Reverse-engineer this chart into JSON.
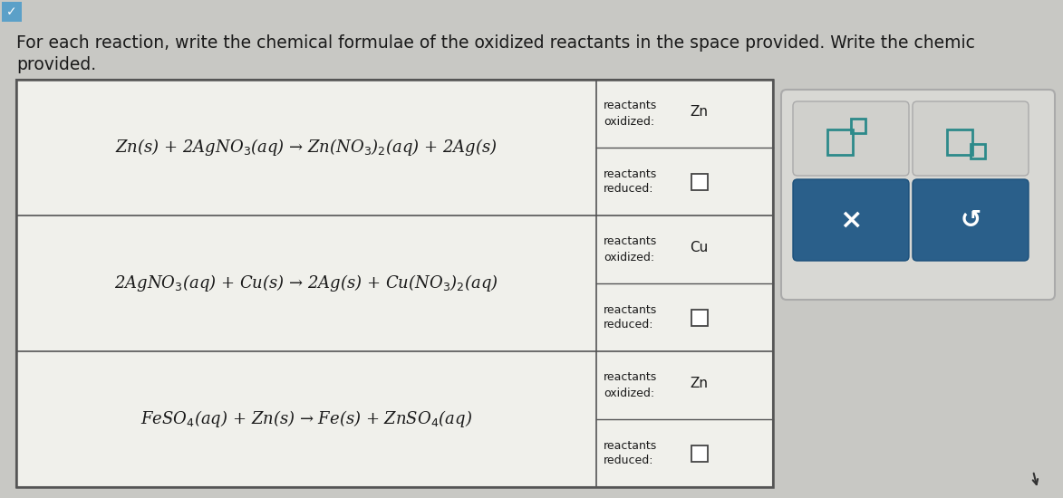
{
  "bg_color": "#c8c8c8",
  "page_bg": "#d4d4d0",
  "title_line1": "For each reaction, write the chemical formulae of the oxidized reactants in the space provided. Write the chemic",
  "title_line2": "provided.",
  "title_fontsize": 13.5,
  "title_color": "#1a1a1a",
  "table_bg": "#f0f0eb",
  "table_border_color": "#555555",
  "reactions": [
    "Zn(s) + 2AgNO$_3$(aq) → Zn(NO$_3$)$_2$(aq) + 2Ag(s)",
    "2AgNO$_3$(aq) + Cu(s) → 2Ag(s) + Cu(NO$_3$)$_2$(aq)",
    "FeSO$_4$(aq) + Zn(s) → Fe(s) + ZnSO$_4$(aq)"
  ],
  "oxidized": [
    "Zn",
    "Cu",
    "Zn"
  ],
  "button_bg_dark": "#2d6fa5",
  "button_icon_color": "#2d8a8a",
  "panel_bg": "#d8d8d4",
  "panel_border": "#b0b0b0"
}
